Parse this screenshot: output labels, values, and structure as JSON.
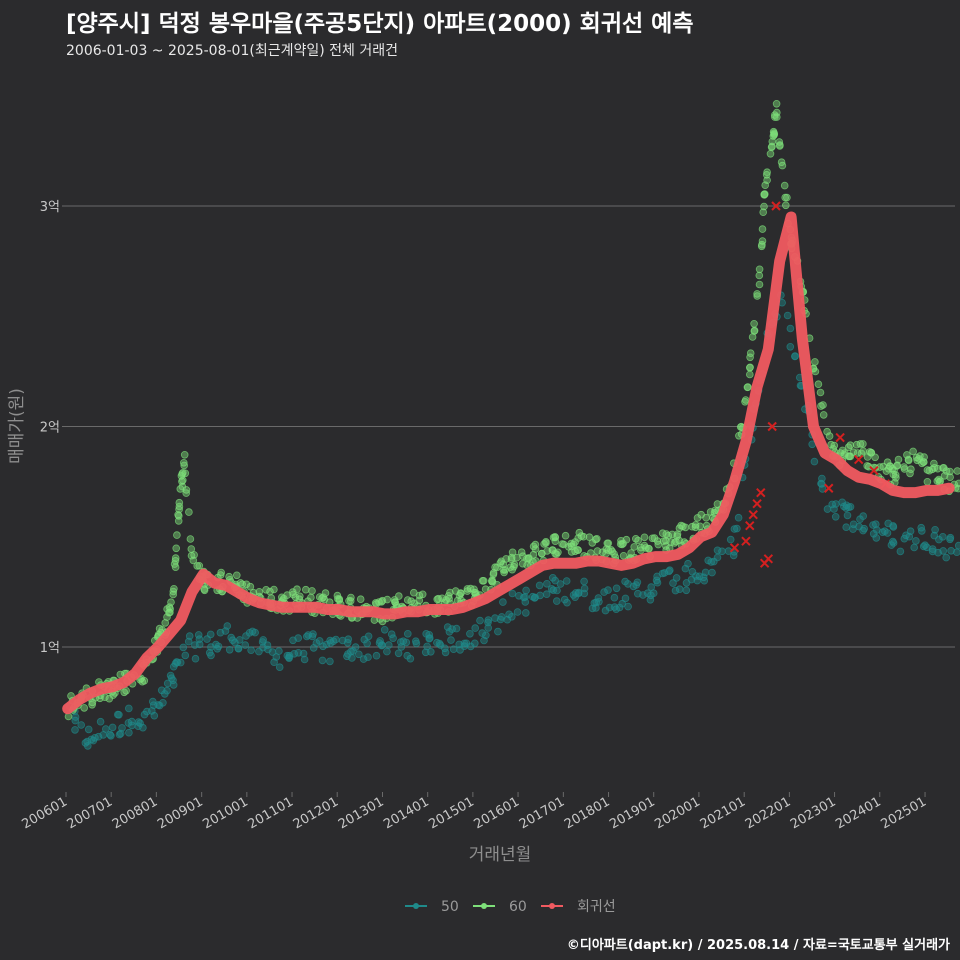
{
  "title": "[양주시] 덕정 봉우마을(주공5단지) 아파트(2000) 회귀선 예측",
  "subtitle": "2006-01-03 ~ 2025-08-01(최근계약일) 전체 거래건",
  "credit": "©디아파트(dapt.kr) / 2025.08.14 / 자료=국토교통부 실거래가",
  "colors": {
    "background": "#2b2b2d",
    "grid": "#6a6a6a",
    "series_50": "#1f8a8a",
    "series_60": "#7ee07a",
    "regression": "#f05a60",
    "cancelled_marker": "#d42020"
  },
  "chart_data": {
    "type": "scatter",
    "xlabel": "거래년월",
    "ylabel": "매매가(원)",
    "x_range": [
      "2006-01-01",
      "2025-08-31"
    ],
    "ylim": [
      0.38,
      3.6
    ],
    "y_unit": "억",
    "y_ticks": [
      {
        "value": 1,
        "label": "1억"
      },
      {
        "value": 2,
        "label": "2억"
      },
      {
        "value": 3,
        "label": "3억"
      }
    ],
    "x_ticks": [
      "200601",
      "200701",
      "200801",
      "200901",
      "201001",
      "201101",
      "201201",
      "201301",
      "201401",
      "201501",
      "201601",
      "201701",
      "201801",
      "201901",
      "202001",
      "202101",
      "202201",
      "202301",
      "202401",
      "202501"
    ],
    "grid": "horizontal",
    "legend_position": "bottom",
    "legend": [
      {
        "key": "50",
        "label": "50"
      },
      {
        "key": "60",
        "label": "60"
      },
      {
        "key": "regression",
        "label": "회귀선"
      }
    ],
    "series": [
      {
        "name": "60",
        "key": "60",
        "points_by_month": [
          [
            "200601",
            0.73
          ],
          [
            "200604",
            0.76
          ],
          [
            "200607",
            0.78
          ],
          [
            "200610",
            0.8
          ],
          [
            "200701",
            0.82
          ],
          [
            "200704",
            0.84
          ],
          [
            "200707",
            0.86
          ],
          [
            "200710",
            0.9
          ],
          [
            "200801",
            1.02
          ],
          [
            "200803",
            1.1
          ],
          [
            "200805",
            1.22
          ],
          [
            "200806",
            1.5
          ],
          [
            "200807",
            1.7
          ],
          [
            "200808",
            1.85
          ],
          [
            "200810",
            1.4
          ],
          [
            "200901",
            1.3
          ],
          [
            "200904",
            1.28
          ],
          [
            "200907",
            1.3
          ],
          [
            "200910",
            1.28
          ],
          [
            "201001",
            1.24
          ],
          [
            "201004",
            1.22
          ],
          [
            "201007",
            1.22
          ],
          [
            "201010",
            1.2
          ],
          [
            "201101",
            1.22
          ],
          [
            "201104",
            1.22
          ],
          [
            "201107",
            1.2
          ],
          [
            "201110",
            1.2
          ],
          [
            "201201",
            1.19
          ],
          [
            "201204",
            1.18
          ],
          [
            "201207",
            1.18
          ],
          [
            "201210",
            1.17
          ],
          [
            "201301",
            1.16
          ],
          [
            "201304",
            1.18
          ],
          [
            "201307",
            1.2
          ],
          [
            "201310",
            1.2
          ],
          [
            "201401",
            1.2
          ],
          [
            "201404",
            1.2
          ],
          [
            "201407",
            1.21
          ],
          [
            "201410",
            1.22
          ],
          [
            "201501",
            1.24
          ],
          [
            "201504",
            1.28
          ],
          [
            "201507",
            1.33
          ],
          [
            "201510",
            1.38
          ],
          [
            "201601",
            1.4
          ],
          [
            "201604",
            1.42
          ],
          [
            "201607",
            1.44
          ],
          [
            "201610",
            1.46
          ],
          [
            "201701",
            1.48
          ],
          [
            "201704",
            1.48
          ],
          [
            "201707",
            1.45
          ],
          [
            "201710",
            1.44
          ],
          [
            "201801",
            1.42
          ],
          [
            "201804",
            1.44
          ],
          [
            "201807",
            1.44
          ],
          [
            "201810",
            1.46
          ],
          [
            "201901",
            1.46
          ],
          [
            "201904",
            1.48
          ],
          [
            "201907",
            1.5
          ],
          [
            "201910",
            1.52
          ],
          [
            "202001",
            1.55
          ],
          [
            "202004",
            1.58
          ],
          [
            "202007",
            1.64
          ],
          [
            "202010",
            1.8
          ],
          [
            "202101",
            2.1
          ],
          [
            "202103",
            2.4
          ],
          [
            "202105",
            2.75
          ],
          [
            "202106",
            3.05
          ],
          [
            "202108",
            3.25
          ],
          [
            "202109",
            3.48
          ],
          [
            "202111",
            3.1
          ],
          [
            "202201",
            2.85
          ],
          [
            "202204",
            2.6
          ],
          [
            "202207",
            2.3
          ],
          [
            "202210",
            2.0
          ],
          [
            "202301",
            1.85
          ],
          [
            "202304",
            1.9
          ],
          [
            "202307",
            1.92
          ],
          [
            "202310",
            1.85
          ],
          [
            "202401",
            1.8
          ],
          [
            "202404",
            1.78
          ],
          [
            "202407",
            1.82
          ],
          [
            "202410",
            1.85
          ],
          [
            "202501",
            1.8
          ],
          [
            "202504",
            1.78
          ],
          [
            "202507",
            1.75
          ]
        ]
      },
      {
        "name": "50",
        "key": "50",
        "points_by_month": [
          [
            "200601",
            0.7
          ],
          [
            "200604",
            0.62
          ],
          [
            "200607",
            0.58
          ],
          [
            "200610",
            0.62
          ],
          [
            "200701",
            0.64
          ],
          [
            "200704",
            0.66
          ],
          [
            "200707",
            0.68
          ],
          [
            "200710",
            0.7
          ],
          [
            "200801",
            0.72
          ],
          [
            "200803",
            0.78
          ],
          [
            "200805",
            0.85
          ],
          [
            "200807",
            0.95
          ],
          [
            "200810",
            1.0
          ],
          [
            "200901",
            1.02
          ],
          [
            "200904",
            1.0
          ],
          [
            "200907",
            1.05
          ],
          [
            "200910",
            1.04
          ],
          [
            "201001",
            1.02
          ],
          [
            "201004",
            1.0
          ],
          [
            "201007",
            0.98
          ],
          [
            "201010",
            0.96
          ],
          [
            "201101",
            0.98
          ],
          [
            "201104",
            1.0
          ],
          [
            "201107",
            1.0
          ],
          [
            "201110",
            0.98
          ],
          [
            "201201",
            0.98
          ],
          [
            "201204",
            1.0
          ],
          [
            "201207",
            1.0
          ],
          [
            "201210",
            1.0
          ],
          [
            "201301",
            1.02
          ],
          [
            "201304",
            1.0
          ],
          [
            "201307",
            1.0
          ],
          [
            "201310",
            1.02
          ],
          [
            "201401",
            1.02
          ],
          [
            "201404",
            1.02
          ],
          [
            "201407",
            1.04
          ],
          [
            "201410",
            1.04
          ],
          [
            "201501",
            1.06
          ],
          [
            "201504",
            1.08
          ],
          [
            "201507",
            1.12
          ],
          [
            "201510",
            1.18
          ],
          [
            "201601",
            1.2
          ],
          [
            "201604",
            1.22
          ],
          [
            "201607",
            1.24
          ],
          [
            "201610",
            1.26
          ],
          [
            "201701",
            1.26
          ],
          [
            "201704",
            1.26
          ],
          [
            "201707",
            1.24
          ],
          [
            "201710",
            1.22
          ],
          [
            "201801",
            1.22
          ],
          [
            "201804",
            1.24
          ],
          [
            "201807",
            1.24
          ],
          [
            "201810",
            1.26
          ],
          [
            "201901",
            1.28
          ],
          [
            "201904",
            1.3
          ],
          [
            "201907",
            1.3
          ],
          [
            "201910",
            1.32
          ],
          [
            "202001",
            1.34
          ],
          [
            "202004",
            1.36
          ],
          [
            "202007",
            1.4
          ],
          [
            "202010",
            1.48
          ],
          [
            "202101",
            1.85
          ],
          [
            "202104",
            2.1
          ],
          [
            "202107",
            2.4
          ],
          [
            "202110",
            2.6
          ],
          [
            "202201",
            2.4
          ],
          [
            "202204",
            2.2
          ],
          [
            "202207",
            1.9
          ],
          [
            "202210",
            1.7
          ],
          [
            "202301",
            1.62
          ],
          [
            "202304",
            1.6
          ],
          [
            "202307",
            1.58
          ],
          [
            "202310",
            1.55
          ],
          [
            "202401",
            1.52
          ],
          [
            "202404",
            1.5
          ],
          [
            "202407",
            1.48
          ],
          [
            "202410",
            1.5
          ],
          [
            "202501",
            1.5
          ],
          [
            "202504",
            1.48
          ],
          [
            "202507",
            1.46
          ]
        ]
      },
      {
        "name": "회귀선",
        "key": "regression",
        "points_by_month": [
          [
            "200601",
            0.72
          ],
          [
            "200604",
            0.76
          ],
          [
            "200607",
            0.79
          ],
          [
            "200610",
            0.81
          ],
          [
            "200701",
            0.82
          ],
          [
            "200704",
            0.84
          ],
          [
            "200707",
            0.88
          ],
          [
            "200710",
            0.95
          ],
          [
            "200801",
            1.0
          ],
          [
            "200804",
            1.06
          ],
          [
            "200807",
            1.12
          ],
          [
            "200810",
            1.25
          ],
          [
            "200901",
            1.33
          ],
          [
            "200904",
            1.29
          ],
          [
            "200907",
            1.28
          ],
          [
            "200910",
            1.25
          ],
          [
            "201001",
            1.22
          ],
          [
            "201004",
            1.2
          ],
          [
            "201007",
            1.19
          ],
          [
            "201010",
            1.18
          ],
          [
            "201101",
            1.18
          ],
          [
            "201104",
            1.18
          ],
          [
            "201107",
            1.18
          ],
          [
            "201110",
            1.17
          ],
          [
            "201201",
            1.17
          ],
          [
            "201204",
            1.16
          ],
          [
            "201207",
            1.16
          ],
          [
            "201210",
            1.16
          ],
          [
            "201301",
            1.15
          ],
          [
            "201304",
            1.15
          ],
          [
            "201307",
            1.16
          ],
          [
            "201310",
            1.16
          ],
          [
            "201401",
            1.17
          ],
          [
            "201404",
            1.17
          ],
          [
            "201407",
            1.17
          ],
          [
            "201410",
            1.18
          ],
          [
            "201501",
            1.2
          ],
          [
            "201504",
            1.22
          ],
          [
            "201507",
            1.25
          ],
          [
            "201510",
            1.28
          ],
          [
            "201601",
            1.31
          ],
          [
            "201604",
            1.34
          ],
          [
            "201607",
            1.37
          ],
          [
            "201610",
            1.38
          ],
          [
            "201701",
            1.38
          ],
          [
            "201704",
            1.38
          ],
          [
            "201707",
            1.39
          ],
          [
            "201710",
            1.39
          ],
          [
            "201801",
            1.38
          ],
          [
            "201804",
            1.37
          ],
          [
            "201807",
            1.38
          ],
          [
            "201810",
            1.4
          ],
          [
            "201901",
            1.41
          ],
          [
            "201904",
            1.41
          ],
          [
            "201907",
            1.42
          ],
          [
            "201910",
            1.45
          ],
          [
            "202001",
            1.5
          ],
          [
            "202004",
            1.52
          ],
          [
            "202007",
            1.6
          ],
          [
            "202010",
            1.75
          ],
          [
            "202101",
            1.93
          ],
          [
            "202104",
            2.18
          ],
          [
            "202107",
            2.35
          ],
          [
            "202110",
            2.75
          ],
          [
            "202201",
            2.95
          ],
          [
            "202204",
            2.4
          ],
          [
            "202207",
            2.0
          ],
          [
            "202210",
            1.88
          ],
          [
            "202301",
            1.85
          ],
          [
            "202304",
            1.8
          ],
          [
            "202307",
            1.77
          ],
          [
            "202310",
            1.76
          ],
          [
            "202401",
            1.74
          ],
          [
            "202404",
            1.71
          ],
          [
            "202407",
            1.7
          ],
          [
            "202410",
            1.7
          ],
          [
            "202501",
            1.71
          ],
          [
            "202504",
            1.71
          ],
          [
            "202507",
            1.72
          ]
        ]
      },
      {
        "name": "cancelled",
        "key": "cancelled",
        "marker": "x",
        "points_by_month": [
          [
            "202010",
            1.45
          ],
          [
            "202101",
            1.48
          ],
          [
            "202102",
            1.55
          ],
          [
            "202103",
            1.6
          ],
          [
            "202104",
            1.65
          ],
          [
            "202105",
            1.7
          ],
          [
            "202106",
            1.38
          ],
          [
            "202107",
            1.4
          ],
          [
            "202108",
            2.0
          ],
          [
            "202109",
            3.0
          ],
          [
            "202211",
            1.72
          ],
          [
            "202302",
            1.95
          ],
          [
            "202307",
            1.85
          ],
          [
            "202311",
            1.8
          ],
          [
            "202402",
            1.74
          ]
        ]
      }
    ]
  }
}
